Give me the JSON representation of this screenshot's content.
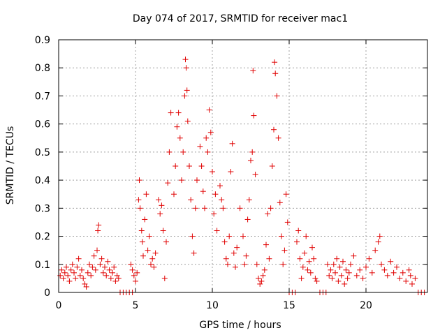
{
  "chart_data": {
    "type": "scatter",
    "title": "Day 074 of 2017, SRMTID for receiver mac1",
    "xlabel": "GPS time / hours",
    "ylabel": "SRMTID / TECUs",
    "xlim": [
      0,
      24
    ],
    "ylim": [
      0,
      0.9
    ],
    "xticks": [
      0,
      5,
      10,
      15,
      20
    ],
    "xtick_labels": [
      "0",
      "5",
      "10",
      "15",
      "20"
    ],
    "yticks": [
      0,
      0.1,
      0.2,
      0.3,
      0.4,
      0.5,
      0.6,
      0.7,
      0.8,
      0.9
    ],
    "ytick_labels": [
      "0",
      "0.1",
      "0.2",
      "0.3",
      "0.4",
      "0.5",
      "0.6",
      "0.7",
      "0.8",
      "0.9"
    ],
    "grid": true,
    "marker_color": "#e00000",
    "marker": "plus",
    "series": [
      {
        "points": [
          [
            0.1,
            0.06
          ],
          [
            0.2,
            0.08
          ],
          [
            0.3,
            0.05
          ],
          [
            0.4,
            0.07
          ],
          [
            0.5,
            0.09
          ],
          [
            0.6,
            0.06
          ],
          [
            0.7,
            0.04
          ],
          [
            0.8,
            0.08
          ],
          [
            0.9,
            0.1
          ],
          [
            1.0,
            0.07
          ],
          [
            1.1,
            0.05
          ],
          [
            1.2,
            0.09
          ],
          [
            1.3,
            0.12
          ],
          [
            1.4,
            0.06
          ],
          [
            1.5,
            0.08
          ],
          [
            1.6,
            0.05
          ],
          [
            1.7,
            0.03
          ],
          [
            1.8,
            0.02
          ],
          [
            1.9,
            0.07
          ],
          [
            2.0,
            0.1
          ],
          [
            2.1,
            0.06
          ],
          [
            2.2,
            0.09
          ],
          [
            2.3,
            0.13
          ],
          [
            2.4,
            0.08
          ],
          [
            2.5,
            0.15
          ],
          [
            2.55,
            0.22
          ],
          [
            2.6,
            0.24
          ],
          [
            2.7,
            0.1
          ],
          [
            2.8,
            0.12
          ],
          [
            2.9,
            0.07
          ],
          [
            3.0,
            0.09
          ],
          [
            3.1,
            0.06
          ],
          [
            3.2,
            0.11
          ],
          [
            3.3,
            0.08
          ],
          [
            3.4,
            0.05
          ],
          [
            3.5,
            0.07
          ],
          [
            3.6,
            0.09
          ],
          [
            3.7,
            0.04
          ],
          [
            3.8,
            0.06
          ],
          [
            3.9,
            0.05
          ],
          [
            4.0,
            0
          ],
          [
            4.2,
            0
          ],
          [
            4.4,
            0
          ],
          [
            4.6,
            0
          ],
          [
            4.8,
            0
          ],
          [
            4.7,
            0.1
          ],
          [
            4.8,
            0.08
          ],
          [
            4.9,
            0.06
          ],
          [
            5.0,
            0.04
          ],
          [
            5.1,
            0.07
          ],
          [
            5.2,
            0.33
          ],
          [
            5.25,
            0.4
          ],
          [
            5.3,
            0.3
          ],
          [
            5.4,
            0.22
          ],
          [
            5.45,
            0.18
          ],
          [
            5.5,
            0.13
          ],
          [
            5.6,
            0.26
          ],
          [
            5.7,
            0.35
          ],
          [
            5.8,
            0.15
          ],
          [
            5.9,
            0.2
          ],
          [
            6.0,
            0.1
          ],
          [
            6.1,
            0.12
          ],
          [
            6.2,
            0.09
          ],
          [
            6.3,
            0.14
          ],
          [
            6.5,
            0.33
          ],
          [
            6.6,
            0.28
          ],
          [
            6.7,
            0.31
          ],
          [
            6.8,
            0.22
          ],
          [
            6.9,
            0.05
          ],
          [
            7.0,
            0.18
          ],
          [
            7.1,
            0.39
          ],
          [
            7.2,
            0.5
          ],
          [
            7.3,
            0.64
          ],
          [
            7.5,
            0.35
          ],
          [
            7.6,
            0.45
          ],
          [
            7.7,
            0.59
          ],
          [
            7.8,
            0.64
          ],
          [
            7.9,
            0.55
          ],
          [
            8.0,
            0.4
          ],
          [
            8.1,
            0.5
          ],
          [
            8.2,
            0.7
          ],
          [
            8.25,
            0.83
          ],
          [
            8.3,
            0.8
          ],
          [
            8.35,
            0.72
          ],
          [
            8.4,
            0.61
          ],
          [
            8.5,
            0.45
          ],
          [
            8.6,
            0.33
          ],
          [
            8.7,
            0.2
          ],
          [
            8.8,
            0.14
          ],
          [
            8.9,
            0.3
          ],
          [
            9.0,
            0.4
          ],
          [
            9.2,
            0.52
          ],
          [
            9.3,
            0.45
          ],
          [
            9.4,
            0.36
          ],
          [
            9.5,
            0.3
          ],
          [
            9.6,
            0.55
          ],
          [
            9.7,
            0.5
          ],
          [
            9.8,
            0.65
          ],
          [
            9.9,
            0.57
          ],
          [
            10.0,
            0.43
          ],
          [
            10.1,
            0.28
          ],
          [
            10.2,
            0.35
          ],
          [
            10.3,
            0.22
          ],
          [
            10.5,
            0.38
          ],
          [
            10.6,
            0.33
          ],
          [
            10.7,
            0.3
          ],
          [
            10.8,
            0.18
          ],
          [
            10.9,
            0.12
          ],
          [
            11.0,
            0.1
          ],
          [
            11.1,
            0.2
          ],
          [
            11.2,
            0.43
          ],
          [
            11.3,
            0.53
          ],
          [
            11.4,
            0.14
          ],
          [
            11.5,
            0.09
          ],
          [
            11.6,
            0.16
          ],
          [
            11.8,
            0.3
          ],
          [
            12.0,
            0.2
          ],
          [
            12.1,
            0.1
          ],
          [
            12.2,
            0.13
          ],
          [
            12.3,
            0.26
          ],
          [
            12.4,
            0.33
          ],
          [
            12.5,
            0.47
          ],
          [
            12.6,
            0.5
          ],
          [
            12.65,
            0.79
          ],
          [
            12.7,
            0.63
          ],
          [
            12.8,
            0.42
          ],
          [
            12.9,
            0.1
          ],
          [
            13.0,
            0.05
          ],
          [
            13.1,
            0.03
          ],
          [
            13.2,
            0.04
          ],
          [
            13.3,
            0.06
          ],
          [
            13.4,
            0.08
          ],
          [
            13.5,
            0.17
          ],
          [
            13.6,
            0.28
          ],
          [
            13.7,
            0.12
          ],
          [
            13.8,
            0.3
          ],
          [
            13.9,
            0.45
          ],
          [
            14.0,
            0.58
          ],
          [
            14.05,
            0.82
          ],
          [
            14.1,
            0.78
          ],
          [
            14.2,
            0.7
          ],
          [
            14.3,
            0.55
          ],
          [
            14.4,
            0.32
          ],
          [
            14.5,
            0.2
          ],
          [
            14.6,
            0.1
          ],
          [
            14.7,
            0.15
          ],
          [
            14.8,
            0.35
          ],
          [
            14.9,
            0.25
          ],
          [
            15.0,
            0
          ],
          [
            15.2,
            0
          ],
          [
            15.4,
            0
          ],
          [
            15.5,
            0.18
          ],
          [
            15.6,
            0.22
          ],
          [
            15.7,
            0.12
          ],
          [
            15.8,
            0.05
          ],
          [
            15.9,
            0.09
          ],
          [
            16.0,
            0.14
          ],
          [
            16.1,
            0.2
          ],
          [
            16.2,
            0.08
          ],
          [
            16.3,
            0.11
          ],
          [
            16.4,
            0.07
          ],
          [
            16.5,
            0.16
          ],
          [
            16.6,
            0.12
          ],
          [
            16.7,
            0.05
          ],
          [
            16.8,
            0.04
          ],
          [
            17.0,
            0
          ],
          [
            17.2,
            0
          ],
          [
            17.4,
            0
          ],
          [
            17.5,
            0.1
          ],
          [
            17.6,
            0.06
          ],
          [
            17.7,
            0.08
          ],
          [
            17.8,
            0.05
          ],
          [
            17.9,
            0.1
          ],
          [
            18.0,
            0.07
          ],
          [
            18.1,
            0.12
          ],
          [
            18.2,
            0.04
          ],
          [
            18.3,
            0.09
          ],
          [
            18.4,
            0.06
          ],
          [
            18.5,
            0.11
          ],
          [
            18.6,
            0.03
          ],
          [
            18.7,
            0.08
          ],
          [
            18.8,
            0.05
          ],
          [
            18.9,
            0.07
          ],
          [
            19.0,
            0.1
          ],
          [
            19.2,
            0.13
          ],
          [
            19.4,
            0.06
          ],
          [
            19.6,
            0.08
          ],
          [
            19.8,
            0.05
          ],
          [
            20.0,
            0.09
          ],
          [
            20.2,
            0.12
          ],
          [
            20.4,
            0.07
          ],
          [
            20.6,
            0.15
          ],
          [
            20.8,
            0.18
          ],
          [
            20.9,
            0.2
          ],
          [
            21.0,
            0.1
          ],
          [
            21.2,
            0.08
          ],
          [
            21.4,
            0.06
          ],
          [
            21.6,
            0.11
          ],
          [
            21.8,
            0.07
          ],
          [
            22.0,
            0.09
          ],
          [
            22.2,
            0.05
          ],
          [
            22.4,
            0.07
          ],
          [
            22.6,
            0.04
          ],
          [
            22.8,
            0.08
          ],
          [
            23.0,
            0.03
          ],
          [
            23.2,
            0.05
          ],
          [
            22.9,
            0.06
          ],
          [
            23.4,
            0.0
          ],
          [
            23.6,
            0.0
          ],
          [
            23.8,
            0.0
          ]
        ]
      }
    ]
  }
}
